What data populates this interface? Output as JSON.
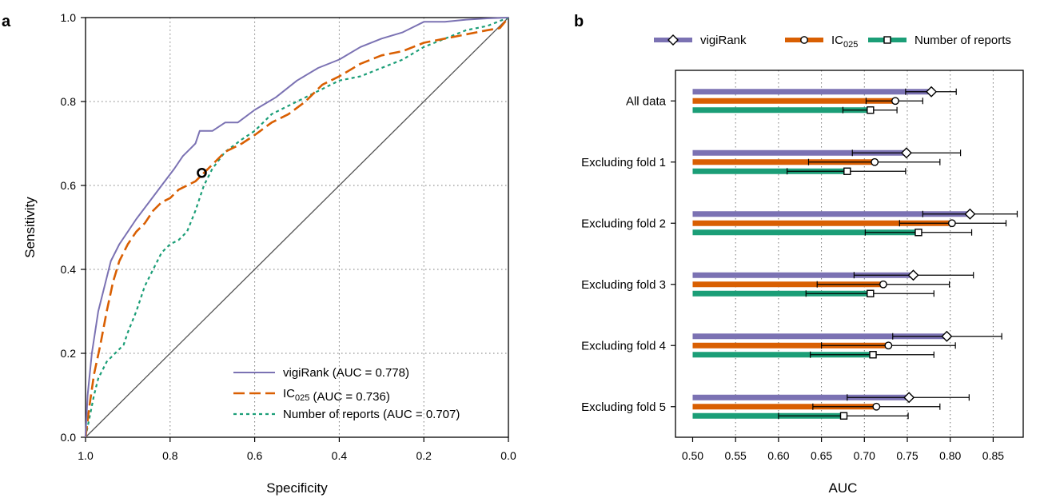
{
  "panel_labels": {
    "a": "a",
    "b": "b"
  },
  "colors": {
    "vigiRank": "#7B72B3",
    "IC025": "#D95F02",
    "reports": "#1B9E77"
  },
  "chart_data": [
    {
      "type": "line",
      "panel": "a",
      "xlabel": "Specificity",
      "ylabel": "Sensitivity",
      "xlim": [
        1.0,
        0.0
      ],
      "ylim": [
        0.0,
        1.0
      ],
      "x_reversed": true,
      "x_ticks": [
        "1.0",
        "0.8",
        "0.6",
        "0.4",
        "0.2",
        "0.0"
      ],
      "y_ticks": [
        "0.0",
        "0.2",
        "0.4",
        "0.6",
        "0.8",
        "1.0"
      ],
      "grid": true,
      "legend_position": "bottom-right",
      "diagonal_reference": true,
      "series": [
        {
          "name": "vigiRank",
          "legend": "vigiRank (AUC = 0.778)",
          "line_style": "solid",
          "x": [
            1.0,
            0.995,
            0.985,
            0.97,
            0.955,
            0.94,
            0.92,
            0.9,
            0.88,
            0.85,
            0.82,
            0.79,
            0.77,
            0.75,
            0.74,
            0.73,
            0.7,
            0.67,
            0.64,
            0.6,
            0.55,
            0.5,
            0.45,
            0.4,
            0.35,
            0.3,
            0.25,
            0.2,
            0.15,
            0.1,
            0.05,
            0.0
          ],
          "y": [
            0.0,
            0.1,
            0.2,
            0.3,
            0.36,
            0.42,
            0.46,
            0.49,
            0.52,
            0.56,
            0.6,
            0.64,
            0.67,
            0.69,
            0.7,
            0.73,
            0.73,
            0.75,
            0.75,
            0.78,
            0.81,
            0.85,
            0.88,
            0.9,
            0.93,
            0.95,
            0.965,
            0.99,
            0.99,
            0.995,
            0.998,
            1.0
          ]
        },
        {
          "name": "IC025",
          "legend": "IC025 (AUC = 0.736)",
          "line_style": "dashed",
          "x": [
            1.0,
            0.99,
            0.98,
            0.965,
            0.95,
            0.935,
            0.92,
            0.9,
            0.88,
            0.86,
            0.84,
            0.82,
            0.8,
            0.78,
            0.76,
            0.74,
            0.72,
            0.7,
            0.67,
            0.63,
            0.6,
            0.56,
            0.52,
            0.48,
            0.44,
            0.4,
            0.35,
            0.3,
            0.25,
            0.2,
            0.15,
            0.1,
            0.05,
            0.02,
            0.0
          ],
          "y": [
            0.0,
            0.08,
            0.15,
            0.22,
            0.3,
            0.37,
            0.42,
            0.46,
            0.49,
            0.51,
            0.54,
            0.56,
            0.57,
            0.59,
            0.6,
            0.61,
            0.63,
            0.65,
            0.68,
            0.7,
            0.72,
            0.75,
            0.77,
            0.8,
            0.84,
            0.86,
            0.89,
            0.91,
            0.92,
            0.94,
            0.95,
            0.96,
            0.97,
            0.975,
            1.0
          ]
        },
        {
          "name": "Number of reports",
          "legend": "Number of reports (AUC = 0.707)",
          "line_style": "dotted",
          "x": [
            1.0,
            0.99,
            0.98,
            0.97,
            0.96,
            0.95,
            0.93,
            0.91,
            0.9,
            0.88,
            0.86,
            0.84,
            0.82,
            0.8,
            0.78,
            0.76,
            0.74,
            0.72,
            0.7,
            0.67,
            0.63,
            0.6,
            0.56,
            0.52,
            0.48,
            0.44,
            0.4,
            0.35,
            0.3,
            0.25,
            0.2,
            0.15,
            0.1,
            0.05,
            0.0
          ],
          "y": [
            0.0,
            0.05,
            0.1,
            0.14,
            0.16,
            0.18,
            0.2,
            0.22,
            0.25,
            0.3,
            0.36,
            0.4,
            0.44,
            0.46,
            0.47,
            0.49,
            0.54,
            0.6,
            0.64,
            0.68,
            0.71,
            0.73,
            0.77,
            0.79,
            0.81,
            0.83,
            0.85,
            0.86,
            0.88,
            0.9,
            0.93,
            0.95,
            0.97,
            0.98,
            1.0
          ]
        }
      ],
      "marker": {
        "x": 0.725,
        "y": 0.63
      }
    },
    {
      "type": "bar",
      "panel": "b",
      "orientation": "horizontal",
      "xlabel": "AUC",
      "xlim": [
        0.48,
        0.885
      ],
      "bar_base": 0.5,
      "x_ticks": [
        "0.50",
        "0.55",
        "0.60",
        "0.65",
        "0.70",
        "0.75",
        "0.80",
        "0.85"
      ],
      "grid": true,
      "legend_position": "top",
      "categories": [
        "All data",
        "Excluding fold 1",
        "Excluding fold 2",
        "Excluding fold 3",
        "Excluding fold 4",
        "Excluding fold 5"
      ],
      "series": [
        {
          "name": "vigiRank",
          "marker": "diamond",
          "values": [
            0.778,
            0.749,
            0.823,
            0.757,
            0.796,
            0.752
          ],
          "err_low": [
            0.748,
            0.686,
            0.768,
            0.688,
            0.733,
            0.68
          ],
          "err_high": [
            0.807,
            0.812,
            0.878,
            0.827,
            0.86,
            0.822
          ]
        },
        {
          "name": "IC025",
          "marker": "circle",
          "values": [
            0.736,
            0.712,
            0.802,
            0.722,
            0.728,
            0.714
          ],
          "err_low": [
            0.702,
            0.635,
            0.741,
            0.645,
            0.65,
            0.64
          ],
          "err_high": [
            0.768,
            0.788,
            0.865,
            0.799,
            0.806,
            0.788
          ]
        },
        {
          "name": "Number of reports",
          "marker": "square",
          "values": [
            0.707,
            0.68,
            0.763,
            0.707,
            0.71,
            0.676
          ],
          "err_low": [
            0.675,
            0.61,
            0.701,
            0.632,
            0.637,
            0.6
          ],
          "err_high": [
            0.738,
            0.748,
            0.825,
            0.781,
            0.781,
            0.751
          ]
        }
      ]
    }
  ],
  "legend_b": [
    {
      "name": "vigiRank",
      "base": "vigiRank",
      "sub": ""
    },
    {
      "name": "IC025",
      "base": "IC",
      "sub": "025"
    },
    {
      "name": "Number of reports",
      "base": "Number of reports",
      "sub": ""
    }
  ],
  "legend_a": [
    {
      "name": "vigiRank",
      "base": "vigiRank",
      "sub": "",
      "auc": "(AUC = 0.778)"
    },
    {
      "name": "IC025",
      "base": "IC",
      "sub": "025",
      "auc": "(AUC = 0.736)"
    },
    {
      "name": "Number of reports",
      "base": "Number of reports",
      "sub": "",
      "auc": "(AUC = 0.707)"
    }
  ]
}
